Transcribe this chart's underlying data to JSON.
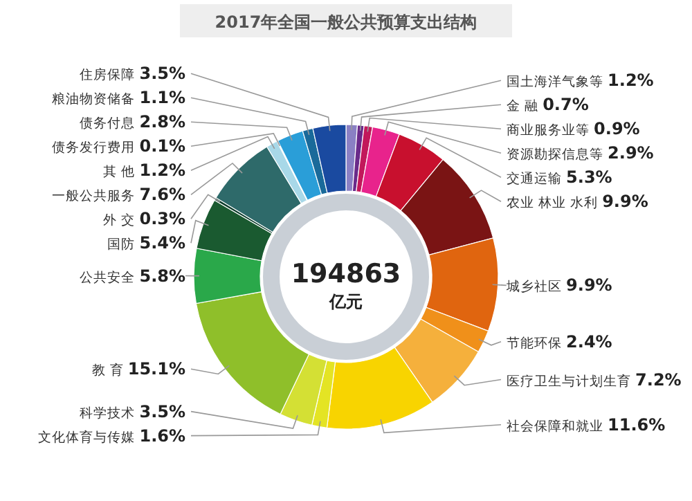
{
  "chart_data": {
    "type": "donut",
    "title": "2017年全国一般公共预算支出结构",
    "categories": [
      "国土海洋气象等",
      "金 融",
      "商业服务业等",
      "资源勘探信息等",
      "交通运输",
      "农业 林业 水利",
      "城乡社区",
      "节能环保",
      "医疗卫生与计划生育",
      "社会保障和就业",
      "文化体育与传媒",
      "科学技术",
      "教 育",
      "公共安全",
      "国防",
      "外 交",
      "一般公共服务",
      "其 他",
      "债务发行费用",
      "债务付息",
      "粮油物资储备",
      "住房保障"
    ],
    "values": [
      1.2,
      0.7,
      0.9,
      2.9,
      5.3,
      9.9,
      9.9,
      2.4,
      7.2,
      11.6,
      1.6,
      3.5,
      15.1,
      5.8,
      5.4,
      0.3,
      7.6,
      1.2,
      0.1,
      2.8,
      1.1,
      3.5
    ],
    "value_labels": [
      "1.2%",
      "0.7%",
      "0.9%",
      "2.9%",
      "5.3%",
      "9.9%",
      "9.9%",
      "2.4%",
      "7.2%",
      "11.6%",
      "1.6%",
      "3.5%",
      "15.1%",
      "5.8%",
      "5.4%",
      "0.3%",
      "7.6%",
      "1.2%",
      "0.1%",
      "2.8%",
      "1.1%",
      "3.5%"
    ],
    "colors": [
      "#8a80c4",
      "#6a2a8a",
      "#c2185b",
      "#e8238c",
      "#c8102e",
      "#7a1414",
      "#e0650f",
      "#f0901a",
      "#f5b03c",
      "#f8d400",
      "#e4e424",
      "#d4e034",
      "#8fbf2a",
      "#2aa84a",
      "#1a5a30",
      "#0d3d2d",
      "#2e6a6a",
      "#a8d8e8",
      "#7ab8d8",
      "#2a9ed8",
      "#1a6a9a",
      "#1a4aa0"
    ],
    "annotations": [
      "194863",
      "亿元"
    ]
  }
}
